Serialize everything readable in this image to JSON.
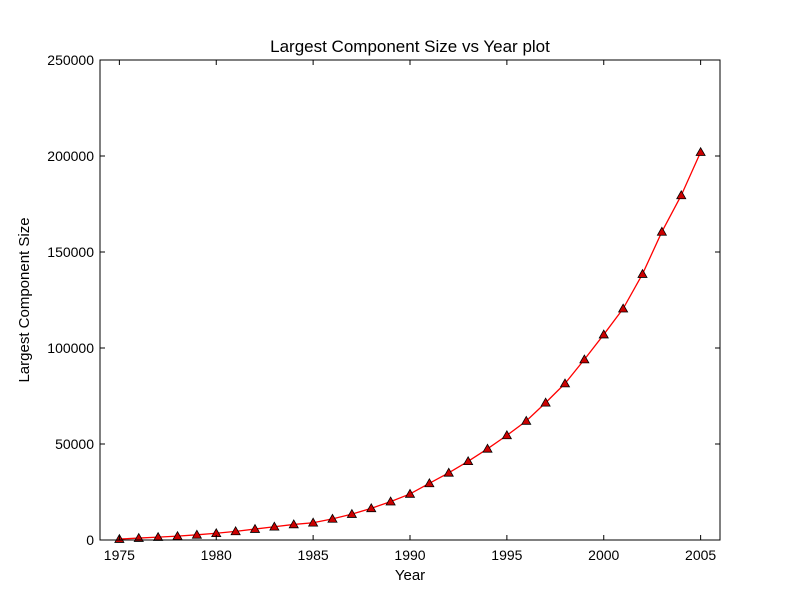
{
  "chart_data": {
    "type": "line",
    "title": "Largest Component Size vs Year plot",
    "xlabel": "Year",
    "ylabel": "Largest Component Size",
    "xlim": [
      1974,
      2006
    ],
    "ylim": [
      0,
      250000
    ],
    "x_ticks": [
      1975,
      1980,
      1985,
      1990,
      1995,
      2000,
      2005
    ],
    "y_ticks": [
      0,
      50000,
      100000,
      150000,
      200000,
      250000
    ],
    "grid": false,
    "legend": "none",
    "series": [
      {
        "color": "#ff0000",
        "marker": "triangle",
        "marker_color": "#cc0000",
        "x": [
          1975,
          1976,
          1977,
          1978,
          1979,
          1980,
          1981,
          1982,
          1983,
          1984,
          1985,
          1986,
          1987,
          1988,
          1989,
          1990,
          1991,
          1992,
          1993,
          1994,
          1995,
          1996,
          1997,
          1998,
          1999,
          2000,
          2001,
          2002,
          2003,
          2004,
          2005
        ],
        "y": [
          500,
          1000,
          1500,
          2000,
          2700,
          3500,
          4500,
          5700,
          6900,
          8100,
          9000,
          11000,
          13500,
          16500,
          20000,
          24000,
          29500,
          35000,
          41000,
          47500,
          54500,
          62000,
          71500,
          81500,
          94000,
          107000,
          120500,
          138500,
          160500,
          179500,
          202000
        ]
      }
    ]
  }
}
